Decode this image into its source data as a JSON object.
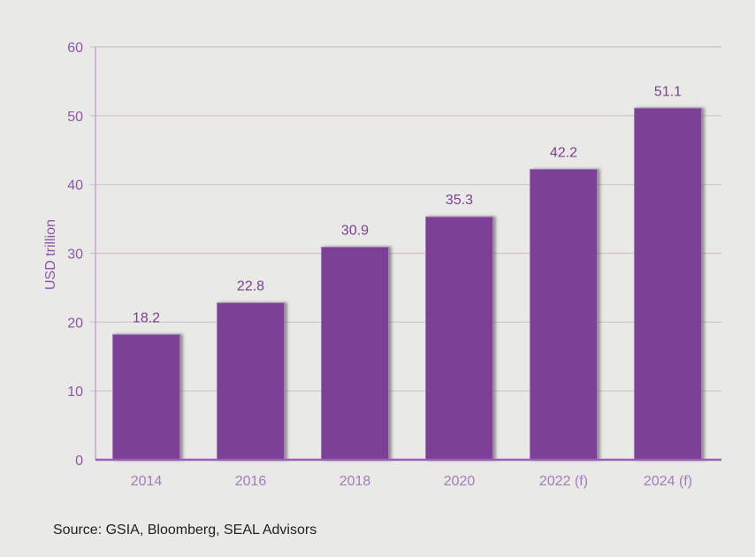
{
  "chart_data": {
    "type": "bar",
    "categories": [
      "2014",
      "2016",
      "2018",
      "2020",
      "2022 (f)",
      "2024 (f)"
    ],
    "values": [
      18.2,
      22.8,
      30.9,
      35.3,
      42.2,
      51.1
    ],
    "data_labels": [
      "18.2",
      "22.8",
      "30.9",
      "35.3",
      "42.2",
      "51.1"
    ],
    "ylabel": "USD trillion",
    "xlabel": "",
    "ylim": [
      0,
      60
    ],
    "yticks": [
      0,
      10,
      20,
      30,
      40,
      50,
      60
    ],
    "grid": true,
    "bar_color": "#7b3f96"
  },
  "source": "Source: GSIA, Bloomberg, SEAL Advisors"
}
